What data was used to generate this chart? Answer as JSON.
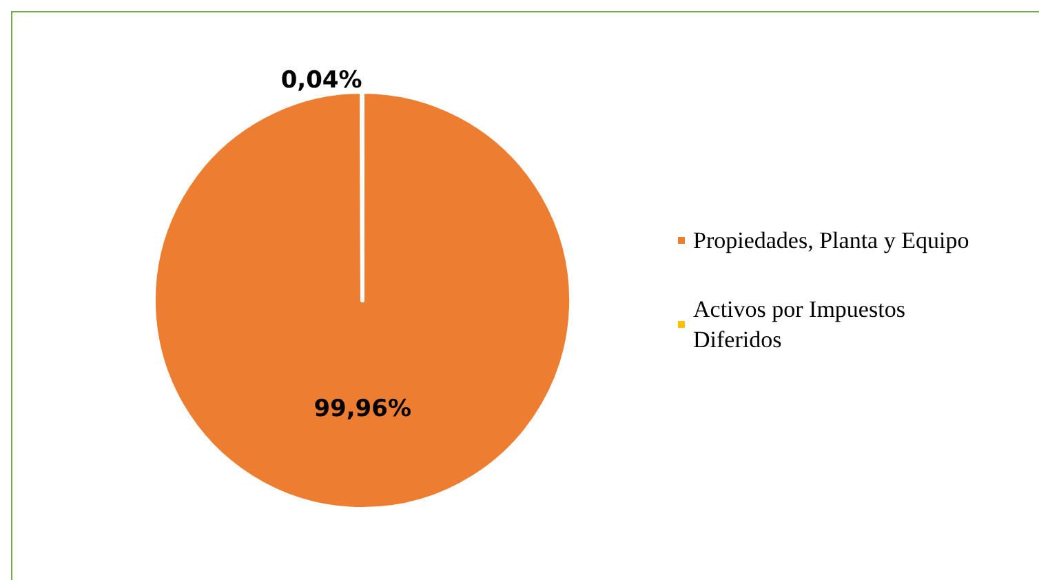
{
  "chart_data": {
    "type": "pie",
    "categories": [
      "Propiedades, Planta y Equipo",
      "Activos por Impuestos Diferidos"
    ],
    "values": [
      99.96,
      0.04
    ],
    "colors": [
      "#ed7d31",
      "#ffc000"
    ],
    "value_labels": [
      "99,96%",
      "0,04%"
    ],
    "legend": "right"
  }
}
